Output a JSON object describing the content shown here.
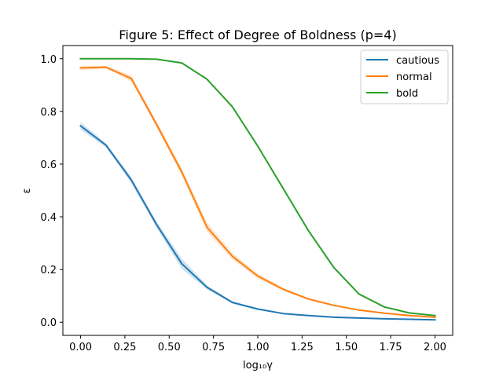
{
  "chart_data": {
    "type": "line",
    "title": "Figure 5: Effect of Degree of Boldness (p=4)",
    "xlabel": "log₁₀γ",
    "ylabel": "ε",
    "xlim": [
      -0.1,
      2.1
    ],
    "ylim": [
      -0.05,
      1.05
    ],
    "xticks": [
      0.0,
      0.25,
      0.5,
      0.75,
      1.0,
      1.25,
      1.5,
      1.75,
      2.0
    ],
    "xtick_labels": [
      "0.00",
      "0.25",
      "0.50",
      "0.75",
      "1.00",
      "1.25",
      "1.50",
      "1.75",
      "2.00"
    ],
    "yticks": [
      0.0,
      0.2,
      0.4,
      0.6,
      0.8,
      1.0
    ],
    "ytick_labels": [
      "0.0",
      "0.2",
      "0.4",
      "0.6",
      "0.8",
      "1.0"
    ],
    "grid": false,
    "legend_position": "top-right",
    "x": [
      0.0,
      0.143,
      0.286,
      0.429,
      0.571,
      0.714,
      0.857,
      1.0,
      1.143,
      1.286,
      1.429,
      1.571,
      1.714,
      1.857,
      2.0
    ],
    "series": [
      {
        "name": "cautious",
        "color": "#1f77b4",
        "values": [
          0.745,
          0.672,
          0.54,
          0.37,
          0.222,
          0.132,
          0.075,
          0.05,
          0.033,
          0.025,
          0.019,
          0.016,
          0.013,
          0.011,
          0.009
        ],
        "band": [
          0.015,
          0.008,
          0.012,
          0.012,
          0.02,
          0.008,
          0.004,
          0.003,
          0.002,
          0.002,
          0.002,
          0.001,
          0.001,
          0.001,
          0.001
        ]
      },
      {
        "name": "normal",
        "color": "#ff7f0e",
        "values": [
          0.965,
          0.968,
          0.925,
          0.75,
          0.57,
          0.36,
          0.25,
          0.175,
          0.125,
          0.088,
          0.064,
          0.046,
          0.034,
          0.025,
          0.019
        ],
        "band": [
          0.008,
          0.005,
          0.012,
          0.012,
          0.015,
          0.018,
          0.012,
          0.01,
          0.006,
          0.004,
          0.003,
          0.002,
          0.002,
          0.002,
          0.001
        ]
      },
      {
        "name": "bold",
        "color": "#2ca02c",
        "values": [
          1.0,
          1.0,
          1.0,
          0.998,
          0.984,
          0.922,
          0.817,
          0.668,
          0.508,
          0.347,
          0.208,
          0.107,
          0.058,
          0.035,
          0.025
        ],
        "band": [
          0.001,
          0.001,
          0.001,
          0.002,
          0.003,
          0.004,
          0.005,
          0.005,
          0.005,
          0.005,
          0.004,
          0.003,
          0.002,
          0.002,
          0.001
        ]
      }
    ]
  }
}
